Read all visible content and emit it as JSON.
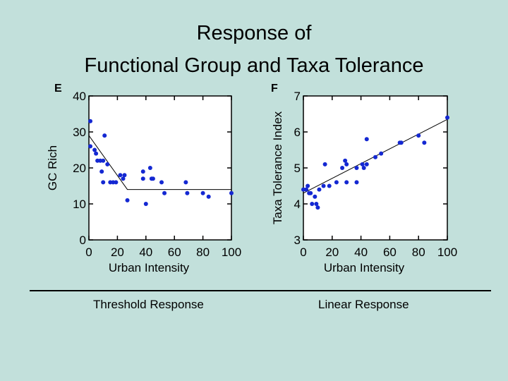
{
  "title": {
    "line1": "Response of",
    "line2": "Functional Group and Taxa Tolerance"
  },
  "captions": {
    "left": "Threshold Response",
    "right": "Linear Response"
  },
  "colors": {
    "background": "#c2e0db",
    "points": "#1428d2",
    "fit_line": "#000000",
    "plot_bg": "#ffffff"
  },
  "chart_data": [
    {
      "type": "scatter",
      "panel_label": "E",
      "xlabel": "Urban Intensity",
      "ylabel": "GC Rich",
      "xlim": [
        0,
        100
      ],
      "ylim": [
        0,
        40
      ],
      "xticks": [
        "0",
        "20",
        "40",
        "60",
        "80",
        "100"
      ],
      "yticks": [
        "0",
        "10",
        "20",
        "30",
        "40"
      ],
      "x": [
        1,
        1,
        4,
        5,
        6,
        8,
        9,
        10,
        10,
        11,
        13,
        15,
        17,
        19,
        22,
        24,
        25,
        27,
        38,
        38,
        40,
        43,
        44,
        45,
        51,
        53,
        68,
        69,
        80,
        84,
        100
      ],
      "y": [
        33,
        26,
        25,
        24,
        22,
        22,
        19,
        22,
        16,
        29,
        21,
        16,
        16,
        16,
        18,
        17,
        18,
        11,
        19,
        17,
        10,
        20,
        17,
        17,
        16,
        13,
        16,
        13,
        13,
        12,
        13
      ],
      "fit": [
        {
          "x": 0,
          "y": 29
        },
        {
          "x": 27,
          "y": 14
        },
        {
          "x": 100,
          "y": 14
        }
      ]
    },
    {
      "type": "scatter",
      "panel_label": "F",
      "xlabel": "Urban Intensity",
      "ylabel": "Taxa Tolerance Index",
      "xlim": [
        0,
        100
      ],
      "ylim": [
        3,
        7
      ],
      "xticks": [
        "0",
        "20",
        "40",
        "60",
        "80",
        "100"
      ],
      "yticks": [
        "3",
        "4",
        "5",
        "6",
        "7"
      ],
      "x": [
        0,
        2,
        3,
        4,
        5,
        6,
        8,
        9,
        10,
        11,
        14,
        15,
        18,
        23,
        27,
        29,
        30,
        30,
        37,
        37,
        41,
        42,
        44,
        44,
        50,
        54,
        67,
        68,
        80,
        84,
        100
      ],
      "y": [
        4.4,
        4.4,
        4.5,
        4.3,
        4.3,
        4.0,
        4.2,
        4.0,
        3.9,
        4.4,
        4.5,
        5.1,
        4.5,
        4.6,
        5.0,
        5.2,
        5.1,
        4.6,
        5.0,
        4.6,
        5.1,
        5.0,
        5.8,
        5.1,
        5.3,
        5.4,
        5.7,
        5.7,
        5.9,
        5.7,
        6.4
      ],
      "fit": [
        {
          "x": 0,
          "y": 4.3
        },
        {
          "x": 100,
          "y": 6.35
        }
      ]
    }
  ]
}
